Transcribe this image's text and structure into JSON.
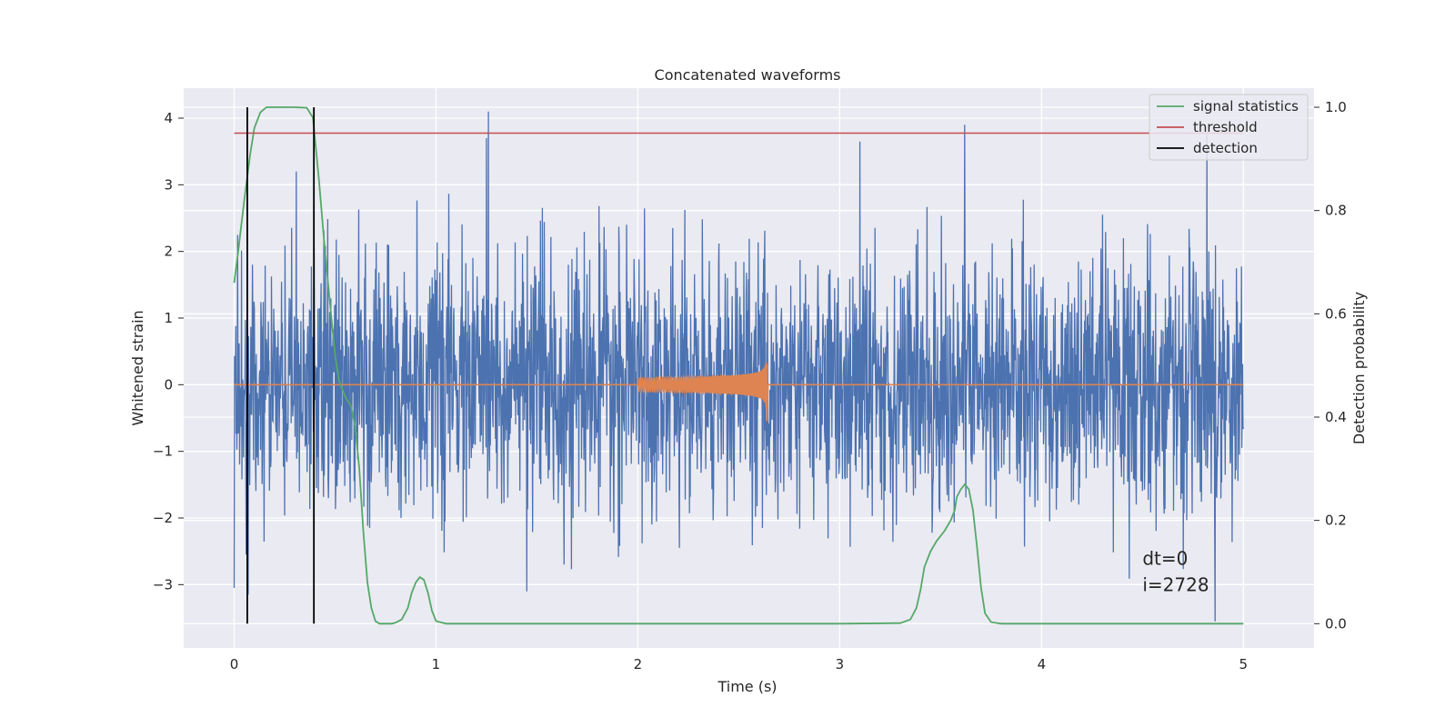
{
  "chart_data": {
    "type": "line",
    "title": "Concatenated waveforms",
    "xlabel": "Time (s)",
    "ylabel": "Whitened strain",
    "y2label": "Detection probability",
    "xlim": [
      -0.25,
      5.35
    ],
    "ylim": [
      -3.95,
      4.45
    ],
    "y2lim": [
      -0.047,
      1.037
    ],
    "x_ticks": [
      0,
      1,
      2,
      3,
      4,
      5
    ],
    "y_ticks": [
      -3,
      -2,
      -1,
      0,
      1,
      2,
      3,
      4
    ],
    "y2_ticks": [
      0.0,
      0.2,
      0.4,
      0.6,
      0.8,
      1.0
    ],
    "x_tick_labels": [
      "0",
      "1",
      "2",
      "3",
      "4",
      "5"
    ],
    "y_tick_labels": [
      "−3",
      "−2",
      "−1",
      "0",
      "1",
      "2",
      "3",
      "4"
    ],
    "y2_tick_labels": [
      "0.0",
      "0.2",
      "0.4",
      "0.6",
      "0.8",
      "1.0"
    ],
    "grid": true,
    "legend_position": "top-right",
    "colors": {
      "strain": "#4c72b0",
      "template": "#dd8452",
      "signal_statistics": "#55a868",
      "threshold": "#c44e52",
      "detection": "#000000",
      "plot_background": "#eaeaf2",
      "grid": "#ffffff"
    },
    "series": [
      {
        "name": "",
        "axis": "left",
        "kind": "whitened strain noise",
        "x_range": [
          0,
          5
        ],
        "envelope_max": 4.1,
        "envelope_min": -3.55,
        "spikes": [
          {
            "x": 0.0,
            "y": -3.05
          },
          {
            "x": 0.06,
            "y": -2.55
          },
          {
            "x": 0.07,
            "y": -3.15
          },
          {
            "x": 1.26,
            "y": 4.1
          },
          {
            "x": 1.25,
            "y": 3.7
          },
          {
            "x": 1.45,
            "y": -3.1
          },
          {
            "x": 3.1,
            "y": 3.65
          },
          {
            "x": 3.62,
            "y": 3.9
          },
          {
            "x": 4.82,
            "y": 3.75
          },
          {
            "x": 4.86,
            "y": -3.55
          }
        ]
      },
      {
        "name": "",
        "axis": "left",
        "kind": "injected chirp",
        "x_range": [
          0,
          5
        ],
        "chirp_start": 2.0,
        "chirp_end": 2.64,
        "chirp_amp_start": 0.1,
        "chirp_amp_peak": 0.42,
        "chirp_amp_min": -0.55
      },
      {
        "name": "signal statistics",
        "axis": "right",
        "x": [
          0.0,
          0.02,
          0.05,
          0.08,
          0.1,
          0.13,
          0.16,
          0.2,
          0.3,
          0.36,
          0.39,
          0.42,
          0.45,
          0.48,
          0.5,
          0.52,
          0.55,
          0.58,
          0.6,
          0.62,
          0.64,
          0.66,
          0.68,
          0.7,
          0.72,
          0.75,
          0.78,
          0.8,
          0.83,
          0.86,
          0.88,
          0.9,
          0.92,
          0.94,
          0.96,
          0.98,
          1.0,
          1.05,
          1.2,
          2.0,
          3.0,
          3.3,
          3.35,
          3.38,
          3.4,
          3.42,
          3.45,
          3.48,
          3.5,
          3.52,
          3.55,
          3.57,
          3.58,
          3.6,
          3.62,
          3.64,
          3.66,
          3.68,
          3.7,
          3.72,
          3.75,
          3.8,
          4.0,
          5.0
        ],
        "y": [
          0.66,
          0.72,
          0.82,
          0.91,
          0.96,
          0.99,
          1.0,
          1.0,
          1.0,
          0.999,
          0.98,
          0.86,
          0.72,
          0.6,
          0.52,
          0.47,
          0.44,
          0.42,
          0.38,
          0.3,
          0.18,
          0.08,
          0.03,
          0.005,
          0.0,
          0.0,
          0.0,
          0.002,
          0.008,
          0.03,
          0.06,
          0.08,
          0.09,
          0.085,
          0.06,
          0.025,
          0.005,
          0.0,
          0.0,
          0.0,
          0.0,
          0.001,
          0.008,
          0.03,
          0.065,
          0.11,
          0.14,
          0.16,
          0.17,
          0.18,
          0.2,
          0.22,
          0.245,
          0.26,
          0.27,
          0.26,
          0.22,
          0.15,
          0.07,
          0.02,
          0.003,
          0.0,
          0.0,
          0.0
        ]
      },
      {
        "name": "threshold",
        "axis": "right",
        "x": [
          0.0,
          5.0
        ],
        "y": [
          0.95,
          0.95
        ]
      },
      {
        "name": "detection",
        "axis": "right",
        "x": [
          0.065,
          0.395
        ],
        "y_range": [
          0.0,
          1.0
        ]
      }
    ],
    "legend": [
      {
        "label": "signal statistics",
        "color": "#55a868"
      },
      {
        "label": "threshold",
        "color": "#c44e52"
      },
      {
        "label": "detection",
        "color": "#000000"
      }
    ],
    "annotations": [
      {
        "text": "dt=0",
        "x": 4.5,
        "y": -2.7
      },
      {
        "text": "i=2728",
        "x": 4.5,
        "y": -3.1
      }
    ]
  }
}
